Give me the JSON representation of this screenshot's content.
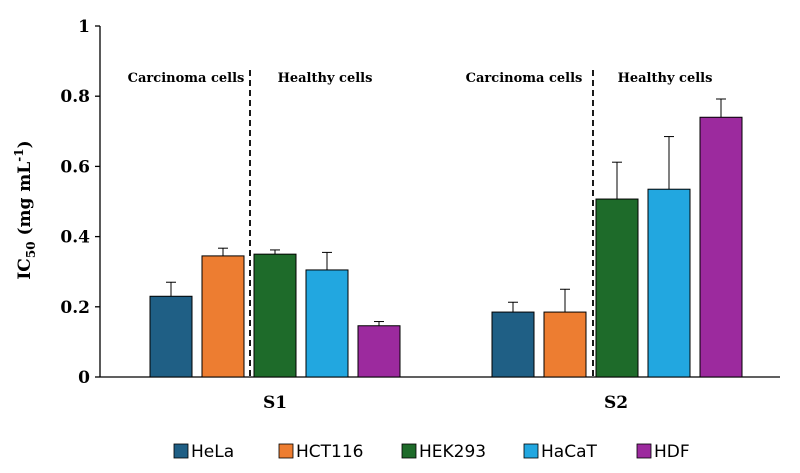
{
  "chart_data": {
    "type": "bar",
    "ylabel_main": "IC",
    "ylabel_sub": "50",
    "ylabel_unit": " (mg mL",
    "ylabel_sup": "-1",
    "ylabel_close": ")",
    "ylim": [
      0,
      1
    ],
    "yticks": [
      "0",
      "0.2",
      "0.4",
      "0.6",
      "0.8",
      "1"
    ],
    "categories": [
      "S1",
      "S2"
    ],
    "series": [
      {
        "name": "HeLa",
        "color": "#1f5f85",
        "values": [
          0.23,
          0.185
        ],
        "errors": [
          0.04,
          0.028
        ]
      },
      {
        "name": "HCT116",
        "color": "#ed7d31",
        "values": [
          0.345,
          0.185
        ],
        "errors": [
          0.022,
          0.065
        ]
      },
      {
        "name": "HEK293",
        "color": "#1e6b2a",
        "values": [
          0.35,
          0.507
        ],
        "errors": [
          0.012,
          0.105
        ]
      },
      {
        "name": "HaCaT",
        "color": "#22a7e0",
        "values": [
          0.305,
          0.535
        ],
        "errors": [
          0.05,
          0.15
        ]
      },
      {
        "name": "HDF",
        "color": "#9c2a9e",
        "values": [
          0.146,
          0.74
        ],
        "errors": [
          0.012,
          0.052
        ]
      }
    ],
    "annotations": [
      "Carcinoma cells",
      "Healthy cells",
      "Carcinoma cells",
      "Healthy cells"
    ],
    "legend_position": "bottom"
  }
}
